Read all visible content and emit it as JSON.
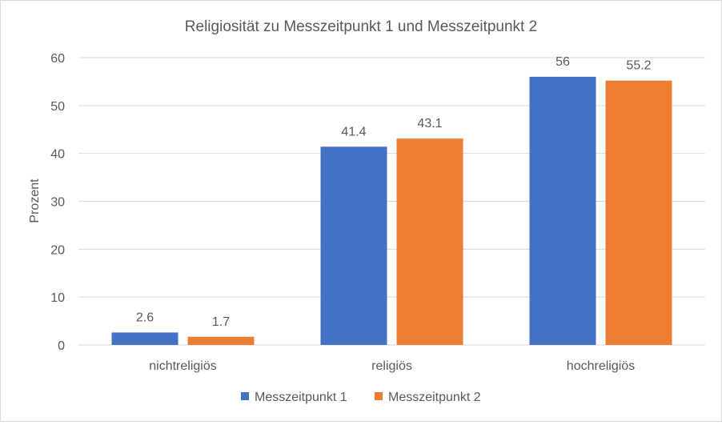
{
  "chart_data": {
    "type": "bar",
    "title": "Religiosität zu Messzeitpunkt 1 und Messzeitpunkt 2",
    "xlabel": "",
    "ylabel": "Prozent",
    "ylim": [
      0,
      60
    ],
    "yticks": [
      0,
      10,
      20,
      30,
      40,
      50,
      60
    ],
    "grid": true,
    "legend_position": "bottom",
    "categories": [
      "nichtreligiös",
      "religiös",
      "hochreligiös"
    ],
    "series": [
      {
        "name": "Messzeitpunkt 1",
        "values": [
          2.6,
          41.4,
          56
        ],
        "labels": [
          "2.6",
          "41.4",
          "56"
        ],
        "color": "#4472c4"
      },
      {
        "name": "Messzeitpunkt 2",
        "values": [
          1.7,
          43.1,
          55.2
        ],
        "labels": [
          "1.7",
          "43.1",
          "55.2"
        ],
        "color": "#ed7d31"
      }
    ]
  }
}
